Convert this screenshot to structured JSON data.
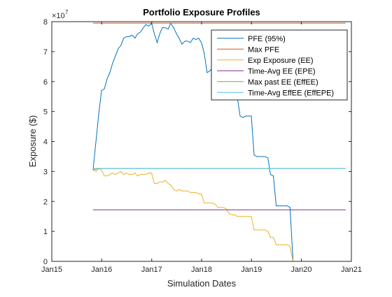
{
  "chart_data": {
    "type": "line",
    "title": "Portfolio Exposure Profiles",
    "xlabel": "Simulation Dates",
    "ylabel": "Exposure ($)",
    "y_exponent_base": "×10",
    "y_exponent_power": "7",
    "xlim": [
      "2015-01-01",
      "2021-01-01"
    ],
    "ylim": [
      0,
      8
    ],
    "x_ticks": [
      {
        "date": "2015-01-01",
        "label": "Jan15"
      },
      {
        "date": "2016-01-01",
        "label": "Jan16"
      },
      {
        "date": "2017-01-01",
        "label": "Jan17"
      },
      {
        "date": "2018-01-01",
        "label": "Jan18"
      },
      {
        "date": "2019-01-01",
        "label": "Jan19"
      },
      {
        "date": "2020-01-01",
        "label": "Jan20"
      },
      {
        "date": "2021-01-01",
        "label": "Jan21"
      }
    ],
    "y_ticks": [
      {
        "value": 0,
        "label": "0"
      },
      {
        "value": 1,
        "label": "1"
      },
      {
        "value": 2,
        "label": "2"
      },
      {
        "value": 3,
        "label": "3"
      },
      {
        "value": 4,
        "label": "4"
      },
      {
        "value": 5,
        "label": "5"
      },
      {
        "value": 6,
        "label": "6"
      },
      {
        "value": 7,
        "label": "7"
      },
      {
        "value": 8,
        "label": "8"
      }
    ],
    "grid": false,
    "legend_position": "top-right",
    "series": [
      {
        "name": "PFE (95%)",
        "color": "#0072BD",
        "points": [
          [
            "2015-10-30",
            3.05
          ],
          [
            "2015-11-20",
            4.0
          ],
          [
            "2015-12-10",
            4.9
          ],
          [
            "2015-12-31",
            5.7
          ],
          [
            "2016-01-20",
            5.75
          ],
          [
            "2016-02-10",
            6.1
          ],
          [
            "2016-03-01",
            6.3
          ],
          [
            "2016-03-20",
            6.6
          ],
          [
            "2016-04-10",
            6.85
          ],
          [
            "2016-05-01",
            7.1
          ],
          [
            "2016-05-20",
            7.2
          ],
          [
            "2016-06-10",
            7.45
          ],
          [
            "2016-07-01",
            7.5
          ],
          [
            "2016-07-20",
            7.5
          ],
          [
            "2016-08-10",
            7.55
          ],
          [
            "2016-09-01",
            7.45
          ],
          [
            "2016-09-20",
            7.6
          ],
          [
            "2016-10-10",
            7.65
          ],
          [
            "2016-11-01",
            7.8
          ],
          [
            "2016-11-20",
            7.9
          ],
          [
            "2016-12-10",
            7.85
          ],
          [
            "2016-12-31",
            7.95
          ],
          [
            "2017-01-20",
            7.6
          ],
          [
            "2017-02-10",
            7.3
          ],
          [
            "2017-03-01",
            7.6
          ],
          [
            "2017-03-20",
            7.8
          ],
          [
            "2017-04-10",
            7.8
          ],
          [
            "2017-05-01",
            7.75
          ],
          [
            "2017-05-20",
            7.95
          ],
          [
            "2017-06-10",
            7.8
          ],
          [
            "2017-07-01",
            7.6
          ],
          [
            "2017-07-20",
            7.45
          ],
          [
            "2017-08-10",
            7.25
          ],
          [
            "2017-09-01",
            7.35
          ],
          [
            "2017-09-20",
            7.35
          ],
          [
            "2017-10-10",
            7.3
          ],
          [
            "2017-11-01",
            7.45
          ],
          [
            "2017-11-20",
            7.4
          ],
          [
            "2017-12-10",
            7.45
          ],
          [
            "2017-12-31",
            7.3
          ],
          [
            "2018-01-20",
            6.95
          ],
          [
            "2018-02-10",
            6.3
          ],
          [
            "2018-03-01",
            6.35
          ],
          [
            "2018-03-20",
            6.45
          ],
          [
            "2018-04-10",
            6.5
          ],
          [
            "2018-05-01",
            6.1
          ],
          [
            "2018-05-20",
            5.9
          ],
          [
            "2018-06-10",
            5.85
          ],
          [
            "2018-07-01",
            5.8
          ],
          [
            "2018-07-20",
            5.75
          ],
          [
            "2018-08-10",
            5.7
          ],
          [
            "2018-09-01",
            5.5
          ],
          [
            "2018-09-20",
            5.45
          ],
          [
            "2018-10-10",
            4.85
          ],
          [
            "2018-11-01",
            4.8
          ],
          [
            "2018-11-20",
            4.85
          ],
          [
            "2018-12-10",
            4.85
          ],
          [
            "2018-12-31",
            4.85
          ],
          [
            "2019-01-20",
            3.55
          ],
          [
            "2019-02-10",
            3.5
          ],
          [
            "2019-03-01",
            3.5
          ],
          [
            "2019-03-20",
            3.5
          ],
          [
            "2019-04-10",
            3.5
          ],
          [
            "2019-05-01",
            3.45
          ],
          [
            "2019-05-20",
            2.9
          ],
          [
            "2019-06-10",
            2.85
          ],
          [
            "2019-07-01",
            1.85
          ],
          [
            "2019-07-20",
            1.85
          ],
          [
            "2019-08-10",
            1.85
          ],
          [
            "2019-09-01",
            1.85
          ],
          [
            "2019-09-20",
            1.85
          ],
          [
            "2019-10-10",
            1.8
          ],
          [
            "2019-11-01",
            0.0
          ],
          [
            "2019-11-20",
            0.0
          ],
          [
            "2020-11-20",
            0.0
          ]
        ]
      },
      {
        "name": "Max PFE",
        "color": "#D95319",
        "points": [
          [
            "2015-10-30",
            7.95
          ],
          [
            "2020-11-20",
            7.95
          ]
        ]
      },
      {
        "name": "Exp Exposure (EE)",
        "color": "#EDB120",
        "points": [
          [
            "2015-10-30",
            3.05
          ],
          [
            "2015-11-20",
            3.0
          ],
          [
            "2015-12-10",
            3.1
          ],
          [
            "2015-12-31",
            3.05
          ],
          [
            "2016-01-20",
            2.85
          ],
          [
            "2016-02-10",
            2.85
          ],
          [
            "2016-03-01",
            2.9
          ],
          [
            "2016-03-20",
            2.95
          ],
          [
            "2016-04-10",
            2.9
          ],
          [
            "2016-05-01",
            2.95
          ],
          [
            "2016-05-20",
            3.0
          ],
          [
            "2016-06-10",
            2.9
          ],
          [
            "2016-07-01",
            2.95
          ],
          [
            "2016-07-20",
            2.9
          ],
          [
            "2016-08-10",
            2.9
          ],
          [
            "2016-09-01",
            2.95
          ],
          [
            "2016-09-20",
            2.85
          ],
          [
            "2016-10-10",
            2.9
          ],
          [
            "2016-11-01",
            2.9
          ],
          [
            "2016-11-20",
            2.9
          ],
          [
            "2016-12-10",
            2.95
          ],
          [
            "2016-12-31",
            2.95
          ],
          [
            "2017-01-20",
            2.6
          ],
          [
            "2017-02-10",
            2.6
          ],
          [
            "2017-03-01",
            2.65
          ],
          [
            "2017-03-20",
            2.65
          ],
          [
            "2017-04-10",
            2.7
          ],
          [
            "2017-05-01",
            2.6
          ],
          [
            "2017-05-20",
            2.55
          ],
          [
            "2017-06-10",
            2.4
          ],
          [
            "2017-07-01",
            2.35
          ],
          [
            "2017-07-20",
            2.4
          ],
          [
            "2017-08-10",
            2.35
          ],
          [
            "2017-09-01",
            2.35
          ],
          [
            "2017-09-20",
            2.35
          ],
          [
            "2017-10-10",
            2.3
          ],
          [
            "2017-11-01",
            2.3
          ],
          [
            "2017-11-20",
            2.3
          ],
          [
            "2017-12-10",
            2.25
          ],
          [
            "2017-12-31",
            2.25
          ],
          [
            "2018-01-20",
            1.95
          ],
          [
            "2018-02-10",
            1.95
          ],
          [
            "2018-03-01",
            1.95
          ],
          [
            "2018-03-20",
            1.95
          ],
          [
            "2018-04-10",
            1.9
          ],
          [
            "2018-05-01",
            1.8
          ],
          [
            "2018-05-20",
            1.8
          ],
          [
            "2018-06-10",
            1.8
          ],
          [
            "2018-07-01",
            1.75
          ],
          [
            "2018-07-20",
            1.6
          ],
          [
            "2018-08-10",
            1.55
          ],
          [
            "2018-09-01",
            1.55
          ],
          [
            "2018-09-20",
            1.5
          ],
          [
            "2018-10-10",
            1.5
          ],
          [
            "2018-11-01",
            1.5
          ],
          [
            "2018-11-20",
            1.5
          ],
          [
            "2018-12-10",
            1.5
          ],
          [
            "2018-12-31",
            1.5
          ],
          [
            "2019-01-20",
            1.05
          ],
          [
            "2019-02-10",
            1.05
          ],
          [
            "2019-03-01",
            1.05
          ],
          [
            "2019-03-20",
            1.05
          ],
          [
            "2019-04-10",
            1.05
          ],
          [
            "2019-05-01",
            1.0
          ],
          [
            "2019-05-20",
            0.8
          ],
          [
            "2019-06-10",
            0.8
          ],
          [
            "2019-07-01",
            0.55
          ],
          [
            "2019-07-20",
            0.55
          ],
          [
            "2019-08-10",
            0.55
          ],
          [
            "2019-09-01",
            0.55
          ],
          [
            "2019-09-20",
            0.55
          ],
          [
            "2019-10-10",
            0.5
          ],
          [
            "2019-11-01",
            0.0
          ],
          [
            "2020-11-20",
            0.0
          ]
        ]
      },
      {
        "name": "Time-Avg EE (EPE)",
        "color": "#7E2F8E",
        "points": [
          [
            "2015-10-30",
            1.72
          ],
          [
            "2020-11-20",
            1.72
          ]
        ]
      },
      {
        "name": "Max past EE (EffEE)",
        "color": "#77AC30",
        "points": [
          [
            "2015-10-30",
            3.05
          ],
          [
            "2015-12-10",
            3.1
          ],
          [
            "2020-11-20",
            3.1
          ]
        ]
      },
      {
        "name": "Time-Avg EffEE (EffEPE)",
        "color": "#4DBEEE",
        "points": [
          [
            "2015-10-30",
            3.1
          ],
          [
            "2020-11-20",
            3.1
          ]
        ]
      }
    ]
  }
}
